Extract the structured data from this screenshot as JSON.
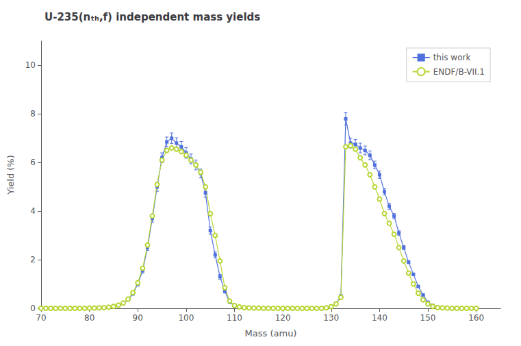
{
  "chart_data": {
    "type": "line",
    "title": "U-235(nₜₕ,f) independent mass yields",
    "xlabel": "Mass (amu)",
    "ylabel": "Yield (%)",
    "xlim": [
      70,
      165
    ],
    "ylim": [
      0,
      11
    ],
    "xticks": [
      70,
      80,
      90,
      100,
      110,
      120,
      130,
      140,
      150,
      160
    ],
    "yticks": [
      0,
      2,
      4,
      6,
      8,
      10
    ],
    "grid": false,
    "legend": "upper right",
    "x": [
      70,
      71,
      72,
      73,
      74,
      75,
      76,
      77,
      78,
      79,
      80,
      81,
      82,
      83,
      84,
      85,
      86,
      87,
      88,
      89,
      90,
      91,
      92,
      93,
      94,
      95,
      96,
      97,
      98,
      99,
      100,
      101,
      102,
      103,
      104,
      105,
      106,
      107,
      108,
      109,
      110,
      111,
      112,
      113,
      114,
      115,
      116,
      117,
      118,
      119,
      120,
      121,
      122,
      123,
      124,
      125,
      126,
      127,
      128,
      129,
      130,
      131,
      132,
      133,
      134,
      135,
      136,
      137,
      138,
      139,
      140,
      141,
      142,
      143,
      144,
      145,
      146,
      147,
      148,
      149,
      150,
      151,
      152,
      153,
      154,
      155,
      156,
      157,
      158,
      159,
      160
    ],
    "series": [
      {
        "name": "this work",
        "marker": "square",
        "line_style": "solid",
        "values": [
          0.0,
          0.0,
          0.0,
          0.0,
          0.0,
          0.0,
          0.0,
          0.0,
          0.0,
          0.0,
          0.01,
          0.01,
          0.02,
          0.03,
          0.05,
          0.08,
          0.13,
          0.2,
          0.35,
          0.6,
          1.0,
          1.55,
          2.5,
          3.7,
          5.0,
          6.2,
          6.85,
          7.0,
          6.8,
          6.65,
          6.4,
          6.15,
          5.9,
          5.55,
          4.75,
          3.2,
          2.2,
          1.3,
          0.7,
          0.25,
          0.1,
          0.05,
          0.03,
          0.02,
          0.01,
          0.01,
          0.0,
          0.0,
          0.0,
          0.0,
          0.0,
          0.0,
          0.0,
          0.0,
          0.0,
          0.0,
          0.0,
          0.0,
          0.0,
          0.02,
          0.08,
          0.2,
          0.5,
          7.8,
          6.8,
          6.75,
          6.6,
          6.5,
          6.3,
          5.9,
          5.5,
          4.8,
          4.2,
          3.8,
          3.1,
          2.5,
          1.9,
          1.4,
          0.9,
          0.55,
          0.25,
          0.12,
          0.05,
          0.02,
          0.01,
          0.01,
          0.0,
          0.0,
          0.0,
          0.0,
          0.0
        ],
        "yerr": [
          0.0,
          0.0,
          0.0,
          0.0,
          0.0,
          0.0,
          0.0,
          0.0,
          0.0,
          0.0,
          0.0,
          0.0,
          0.0,
          0.0,
          0.0,
          0.01,
          0.02,
          0.03,
          0.04,
          0.06,
          0.08,
          0.1,
          0.12,
          0.15,
          0.18,
          0.2,
          0.2,
          0.22,
          0.22,
          0.22,
          0.22,
          0.2,
          0.2,
          0.18,
          0.18,
          0.15,
          0.12,
          0.1,
          0.07,
          0.04,
          0.02,
          0.01,
          0.01,
          0.0,
          0.0,
          0.0,
          0.0,
          0.0,
          0.0,
          0.0,
          0.0,
          0.0,
          0.0,
          0.0,
          0.0,
          0.0,
          0.0,
          0.0,
          0.0,
          0.0,
          0.02,
          0.04,
          0.06,
          0.25,
          0.2,
          0.2,
          0.2,
          0.18,
          0.18,
          0.16,
          0.15,
          0.13,
          0.12,
          0.1,
          0.09,
          0.08,
          0.06,
          0.05,
          0.04,
          0.03,
          0.02,
          0.01,
          0.01,
          0.0,
          0.0,
          0.0,
          0.0,
          0.0,
          0.0,
          0.0,
          0.0
        ]
      },
      {
        "name": "ENDF/B-VII.1",
        "marker": "circle",
        "line_style": "solid",
        "values": [
          0.0,
          0.0,
          0.0,
          0.0,
          0.0,
          0.0,
          0.0,
          0.0,
          0.0,
          0.0,
          0.01,
          0.01,
          0.02,
          0.03,
          0.05,
          0.08,
          0.13,
          0.22,
          0.38,
          0.65,
          1.05,
          1.65,
          2.6,
          3.8,
          5.1,
          6.1,
          6.5,
          6.6,
          6.55,
          6.45,
          6.3,
          6.1,
          5.9,
          5.6,
          5.0,
          3.9,
          3.0,
          1.95,
          0.85,
          0.3,
          0.12,
          0.06,
          0.03,
          0.02,
          0.01,
          0.01,
          0.0,
          0.0,
          0.0,
          0.0,
          0.0,
          0.0,
          0.0,
          0.0,
          0.0,
          0.0,
          0.0,
          0.0,
          0.0,
          0.02,
          0.07,
          0.18,
          0.45,
          6.65,
          6.7,
          6.55,
          6.2,
          5.9,
          5.5,
          5.0,
          4.5,
          3.9,
          3.5,
          3.05,
          2.5,
          1.95,
          1.45,
          1.0,
          0.62,
          0.35,
          0.18,
          0.08,
          0.03,
          0.02,
          0.01,
          0.0,
          0.0,
          0.0,
          0.0,
          0.0,
          0.0
        ]
      }
    ]
  }
}
